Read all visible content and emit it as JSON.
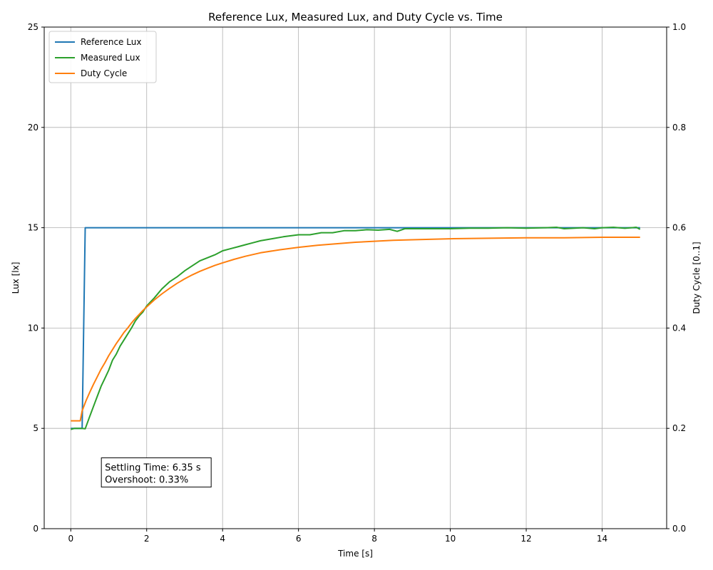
{
  "chart_data": {
    "type": "line",
    "title": "Reference Lux, Measured Lux, and Duty Cycle vs. Time",
    "xlabel": "Time [s]",
    "ylabel_left": "Lux [lx]",
    "ylabel_right": "Duty Cycle [0..1]",
    "xlim": [
      -0.7,
      15.7
    ],
    "ylim_left": [
      0,
      25
    ],
    "ylim_right": [
      0,
      1
    ],
    "x_ticks": [
      0,
      2,
      4,
      6,
      8,
      10,
      12,
      14
    ],
    "y_ticks_left": [
      0,
      5,
      10,
      15,
      20,
      25
    ],
    "y_ticks_right": [
      "0.0",
      "0.2",
      "0.4",
      "0.6",
      "0.8",
      "1.0"
    ],
    "grid": true,
    "legend_position": "top-left",
    "series": [
      {
        "name": "Reference Lux",
        "axis": "left",
        "color": "#1f77b4",
        "points": [
          [
            0,
            5
          ],
          [
            0.3,
            5
          ],
          [
            0.38,
            15
          ],
          [
            15,
            15
          ]
        ]
      },
      {
        "name": "Measured Lux",
        "axis": "left",
        "color": "#2ca02c",
        "points": [
          [
            0,
            4.95
          ],
          [
            0.1,
            5.0
          ],
          [
            0.2,
            5.0
          ],
          [
            0.3,
            5.0
          ],
          [
            0.38,
            4.98
          ],
          [
            0.5,
            5.6
          ],
          [
            0.6,
            6.1
          ],
          [
            0.7,
            6.6
          ],
          [
            0.8,
            7.1
          ],
          [
            0.9,
            7.5
          ],
          [
            1.0,
            7.9
          ],
          [
            1.1,
            8.4
          ],
          [
            1.2,
            8.7
          ],
          [
            1.3,
            9.1
          ],
          [
            1.4,
            9.4
          ],
          [
            1.5,
            9.7
          ],
          [
            1.6,
            10.0
          ],
          [
            1.7,
            10.35
          ],
          [
            1.8,
            10.6
          ],
          [
            1.9,
            10.8
          ],
          [
            2.0,
            11.1
          ],
          [
            2.2,
            11.5
          ],
          [
            2.4,
            11.95
          ],
          [
            2.6,
            12.3
          ],
          [
            2.8,
            12.55
          ],
          [
            3.0,
            12.85
          ],
          [
            3.2,
            13.1
          ],
          [
            3.4,
            13.35
          ],
          [
            3.6,
            13.5
          ],
          [
            3.8,
            13.65
          ],
          [
            4.0,
            13.85
          ],
          [
            4.2,
            13.95
          ],
          [
            4.4,
            14.05
          ],
          [
            4.6,
            14.15
          ],
          [
            4.8,
            14.25
          ],
          [
            5.0,
            14.35
          ],
          [
            5.3,
            14.45
          ],
          [
            5.6,
            14.55
          ],
          [
            6.0,
            14.65
          ],
          [
            6.3,
            14.65
          ],
          [
            6.6,
            14.75
          ],
          [
            6.9,
            14.75
          ],
          [
            7.2,
            14.85
          ],
          [
            7.5,
            14.85
          ],
          [
            7.8,
            14.9
          ],
          [
            8.1,
            14.88
          ],
          [
            8.4,
            14.92
          ],
          [
            8.6,
            14.82
          ],
          [
            8.8,
            14.95
          ],
          [
            9.2,
            14.95
          ],
          [
            9.6,
            14.95
          ],
          [
            10.0,
            14.95
          ],
          [
            10.5,
            14.98
          ],
          [
            11.0,
            14.98
          ],
          [
            11.5,
            15.0
          ],
          [
            12.0,
            14.98
          ],
          [
            12.5,
            15.0
          ],
          [
            12.8,
            15.02
          ],
          [
            13.0,
            14.95
          ],
          [
            13.5,
            15.0
          ],
          [
            13.8,
            14.95
          ],
          [
            14.0,
            15.0
          ],
          [
            14.3,
            15.02
          ],
          [
            14.6,
            14.97
          ],
          [
            14.9,
            15.02
          ],
          [
            15.0,
            14.92
          ]
        ]
      },
      {
        "name": "Duty Cycle",
        "axis": "right",
        "color": "#ff7f0e",
        "points": [
          [
            0,
            0.215
          ],
          [
            0.25,
            0.215
          ],
          [
            0.3,
            0.235
          ],
          [
            0.4,
            0.255
          ],
          [
            0.5,
            0.272
          ],
          [
            0.6,
            0.288
          ],
          [
            0.7,
            0.303
          ],
          [
            0.8,
            0.318
          ],
          [
            0.9,
            0.331
          ],
          [
            1.0,
            0.345
          ],
          [
            1.1,
            0.357
          ],
          [
            1.2,
            0.369
          ],
          [
            1.3,
            0.38
          ],
          [
            1.4,
            0.391
          ],
          [
            1.5,
            0.4
          ],
          [
            1.6,
            0.41
          ],
          [
            1.7,
            0.419
          ],
          [
            1.8,
            0.427
          ],
          [
            1.9,
            0.435
          ],
          [
            2.0,
            0.442
          ],
          [
            2.2,
            0.456
          ],
          [
            2.4,
            0.468
          ],
          [
            2.6,
            0.479
          ],
          [
            2.8,
            0.489
          ],
          [
            3.0,
            0.498
          ],
          [
            3.2,
            0.506
          ],
          [
            3.4,
            0.513
          ],
          [
            3.6,
            0.519
          ],
          [
            3.8,
            0.525
          ],
          [
            4.0,
            0.53
          ],
          [
            4.3,
            0.537
          ],
          [
            4.6,
            0.543
          ],
          [
            5.0,
            0.55
          ],
          [
            5.5,
            0.556
          ],
          [
            6.0,
            0.561
          ],
          [
            6.5,
            0.565
          ],
          [
            7.0,
            0.568
          ],
          [
            7.5,
            0.571
          ],
          [
            8.0,
            0.573
          ],
          [
            8.5,
            0.575
          ],
          [
            9.0,
            0.576
          ],
          [
            10.0,
            0.578
          ],
          [
            11.0,
            0.579
          ],
          [
            12.0,
            0.58
          ],
          [
            13.0,
            0.58
          ],
          [
            14.0,
            0.581
          ],
          [
            15.0,
            0.581
          ]
        ]
      }
    ],
    "annotation": {
      "lines": [
        "Settling Time: 6.35 s",
        "Overshoot: 0.33%"
      ],
      "x": 0.9,
      "y_left": 2.5
    }
  }
}
